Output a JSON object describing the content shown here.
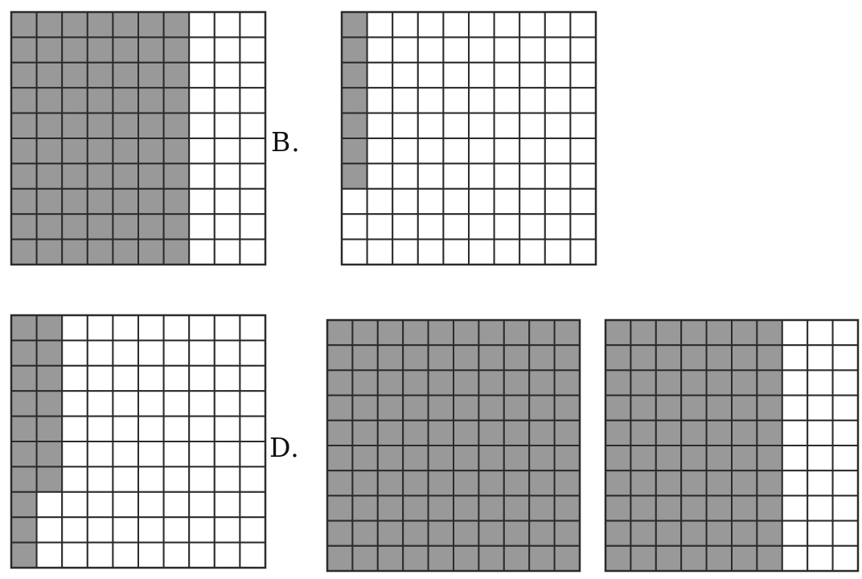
{
  "options": [
    {
      "label": "",
      "grids": [
        {
          "shaded_cols": 7,
          "shaded_last_col_rows": 10
        }
      ]
    },
    {
      "label": "B.",
      "grids": [
        {
          "shaded_cols": 1,
          "shaded_last_col_rows": 7
        }
      ]
    },
    {
      "label": "",
      "grids": [
        {
          "shaded_cols": 2,
          "shaded_last_col_rows": 7
        }
      ]
    },
    {
      "label": "D.",
      "grids": [
        {
          "shaded_cols": 10,
          "shaded_last_col_rows": 10
        },
        {
          "shaded_cols": 7,
          "shaded_last_col_rows": 10
        }
      ]
    }
  ],
  "grid": {
    "rows": 10,
    "cols": 10
  },
  "colors": {
    "shaded": "#999999",
    "unshaded": "#ffffff",
    "line": "#2b2b2b"
  }
}
